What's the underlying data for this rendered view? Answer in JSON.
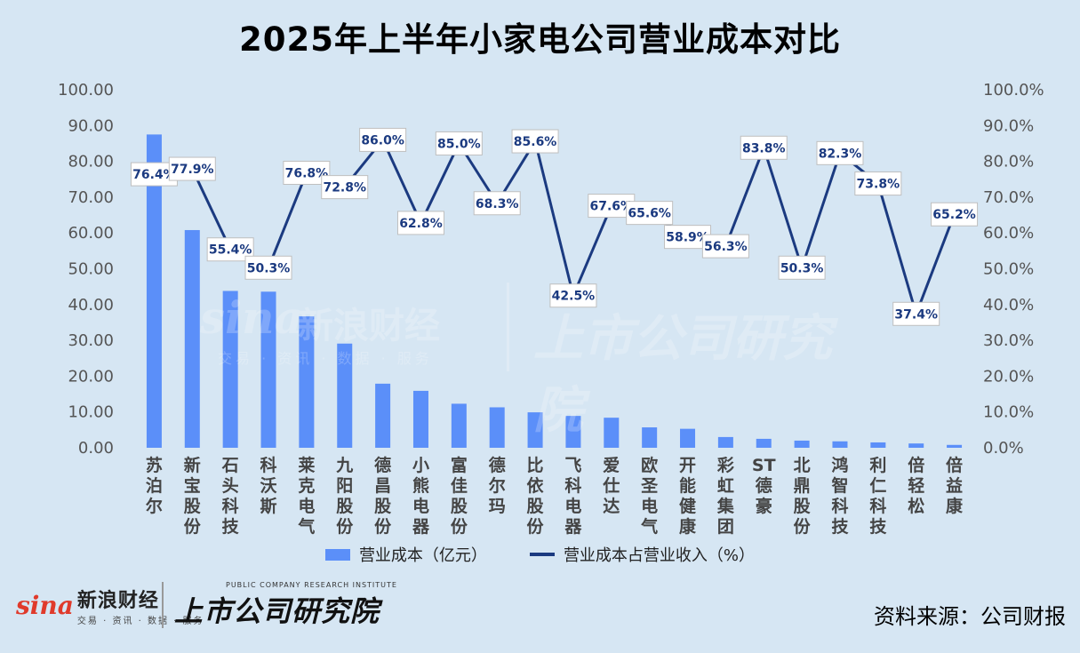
{
  "title": "2025年上半年小家电公司营业成本对比",
  "source": "资料来源：公司财报",
  "footer": {
    "sina_mark": "sina",
    "sina_name": "新浪财经",
    "sina_sub": "交易 · 资讯 · 数据 · 服务",
    "inst_sub": "PUBLIC COMPANY RESEARCH INSTITUTE",
    "inst_name": "上市公司研究院"
  },
  "chart_data": {
    "type": "bar",
    "categories": [
      "苏泊尔",
      "新宝股份",
      "石头科技",
      "科沃斯",
      "莱克电气",
      "九阳股份",
      "德昌股份",
      "小熊电器",
      "富佳股份",
      "德尔玛",
      "比依股份",
      "飞科电器",
      "爱仕达",
      "欧圣电气",
      "开能健康",
      "彩虹集团",
      "ST德豪",
      "北鼎股份",
      "鸿智科技",
      "利仁科技",
      "倍轻松",
      "倍益康"
    ],
    "series": [
      {
        "name": "营业成本（亿元）",
        "type": "bar",
        "axis": "left",
        "color": "#5b8ff9",
        "values": [
          87.5,
          60.8,
          43.8,
          43.6,
          36.7,
          29.1,
          17.9,
          15.9,
          12.3,
          11.3,
          9.9,
          8.9,
          8.4,
          5.7,
          5.3,
          3.0,
          2.5,
          2.0,
          1.8,
          1.5,
          1.2,
          0.8
        ]
      },
      {
        "name": "营业成本占营业收入（%）",
        "type": "line",
        "axis": "right",
        "color": "#1b3a80",
        "values": [
          76.4,
          77.9,
          55.4,
          50.3,
          76.8,
          72.8,
          86.0,
          62.8,
          85.0,
          68.3,
          85.6,
          42.5,
          67.6,
          65.6,
          58.9,
          56.3,
          83.8,
          50.3,
          82.3,
          73.8,
          37.4,
          65.2
        ],
        "labels": [
          "76.4%",
          "77.9%",
          "55.4%",
          "50.3%",
          "76.8%",
          "72.8%",
          "86.0%",
          "62.8%",
          "85.0%",
          "68.3%",
          "85.6%",
          "42.5%",
          "67.6%",
          "65.6%",
          "58.9%",
          "56.3%",
          "83.8%",
          "50.3%",
          "82.3%",
          "73.8%",
          "37.4%",
          "65.2%"
        ]
      }
    ],
    "left_axis": {
      "min": 0,
      "max": 100,
      "step": 10,
      "ticks": [
        "0.00",
        "10.00",
        "20.00",
        "30.00",
        "40.00",
        "50.00",
        "60.00",
        "70.00",
        "80.00",
        "90.00",
        "100.00"
      ]
    },
    "right_axis": {
      "min": 0,
      "max": 100,
      "step": 10,
      "ticks": [
        "0.0%",
        "10.0%",
        "20.0%",
        "30.0%",
        "40.0%",
        "50.0%",
        "60.0%",
        "70.0%",
        "80.0%",
        "90.0%",
        "100.0%"
      ]
    },
    "grid": false,
    "legend": "bottom"
  }
}
